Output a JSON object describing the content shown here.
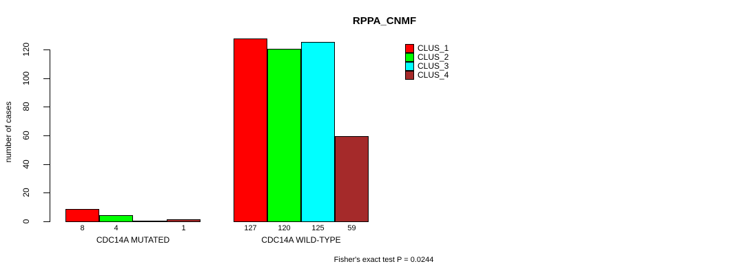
{
  "page": {
    "background": "#ffffff",
    "text_color": "#000000"
  },
  "chart_data": {
    "type": "bar",
    "title": "RPPA_CNMF",
    "ylabel": "number of cases",
    "xlabel": "",
    "categories": [
      "CDC14A MUTATED",
      "CDC14A WILD-TYPE"
    ],
    "series": [
      {
        "name": "CLUS_1",
        "color": "#FF0000",
        "values": [
          8,
          127
        ]
      },
      {
        "name": "CLUS_2",
        "color": "#00FF00",
        "values": [
          4,
          120
        ]
      },
      {
        "name": "CLUS_3",
        "color": "#00FFFF",
        "values": [
          0,
          125
        ]
      },
      {
        "name": "CLUS_4",
        "color": "#A52A2A",
        "values": [
          1,
          59
        ]
      }
    ],
    "bar_value_labels": [
      [
        "8",
        "4",
        "",
        "1"
      ],
      [
        "127",
        "120",
        "125",
        "59"
      ]
    ],
    "y_ticks": [
      0,
      20,
      40,
      60,
      80,
      100,
      120
    ],
    "ylim": [
      0,
      130
    ],
    "grid": false,
    "legend_position": "top-right",
    "legend_entries": [
      "CLUS_1",
      "CLUS_2",
      "CLUS_3",
      "CLUS_4"
    ],
    "annotation": "Fisher's exact test P = 0.0244"
  }
}
